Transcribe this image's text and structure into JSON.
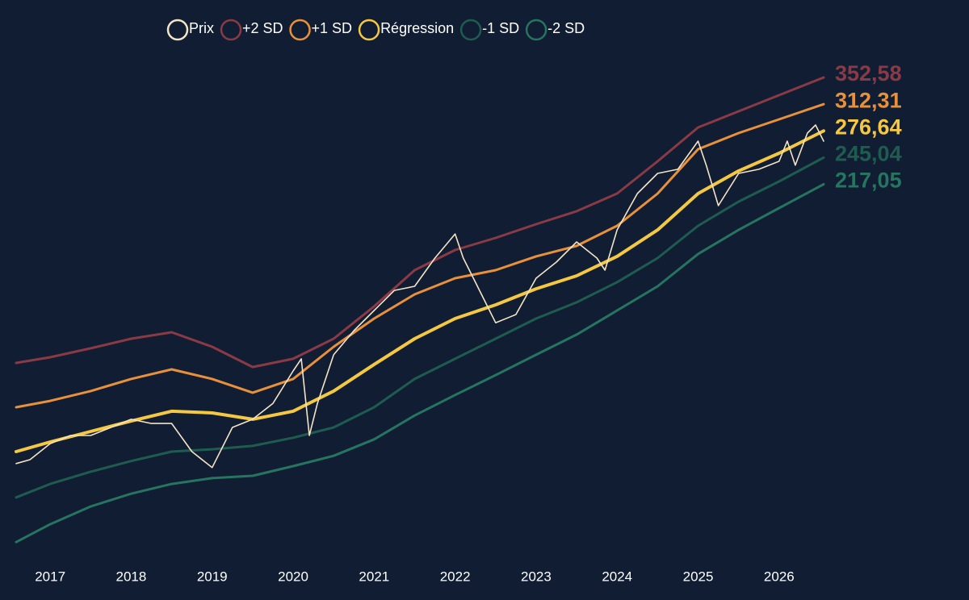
{
  "chart_data": {
    "type": "line",
    "log_y": true,
    "grid": false,
    "legend": "top",
    "xlim": [
      2016.58,
      2026.55
    ],
    "xticks": [
      2017,
      2018,
      2019,
      2020,
      2021,
      2022,
      2023,
      2024,
      2025,
      2026
    ],
    "ylim": [
      40,
      433
    ],
    "x": [
      2016.58,
      2017,
      2017.5,
      2018,
      2018.5,
      2019,
      2019.5,
      2020,
      2020.5,
      2021,
      2021.5,
      2022,
      2022.5,
      2023,
      2023.5,
      2024,
      2024.5,
      2025,
      2025.5,
      2026,
      2026.55
    ],
    "series": [
      {
        "name": "Prix",
        "color": "#f3e4c6",
        "width": 1.6,
        "x": [
          2016.58,
          2016.75,
          2017,
          2017.25,
          2017.5,
          2017.75,
          2018,
          2018.25,
          2018.5,
          2018.75,
          2019,
          2019.25,
          2019.5,
          2019.75,
          2020,
          2020.1,
          2020.2,
          2020.3,
          2020.5,
          2020.75,
          2021,
          2021.25,
          2021.5,
          2021.75,
          2022,
          2022.1,
          2022.25,
          2022.5,
          2022.75,
          2023,
          2023.25,
          2023.5,
          2023.75,
          2023.85,
          2024,
          2024.25,
          2024.5,
          2024.75,
          2025,
          2025.1,
          2025.25,
          2025.5,
          2025.75,
          2026,
          2026.1,
          2026.2,
          2026.35,
          2026.45,
          2026.55
        ],
        "values": [
          61.0,
          62.1,
          66.8,
          69.3,
          69.3,
          71.9,
          74.6,
          73.2,
          73.2,
          64.4,
          59.9,
          71.9,
          74.6,
          80.2,
          92.9,
          98.2,
          69.3,
          80.2,
          100.0,
          111.6,
          122.3,
          134.0,
          136.5,
          155.2,
          173.2,
          155.2,
          139.1,
          115.7,
          120.1,
          141.6,
          152.4,
          167.0,
          155.2,
          146.9,
          176.4,
          208.1,
          228.0,
          232.3,
          264.0,
          236.6,
          197.0,
          228.0,
          232.3,
          240.9,
          264.0,
          236.6,
          273.9,
          284.1,
          264.0
        ]
      },
      {
        "name": "+2 SD",
        "color": "#8a3a45",
        "width": 3,
        "values": [
          96.4,
          98.9,
          103.0,
          107.6,
          110.8,
          103.7,
          94.6,
          98.2,
          107.6,
          124.6,
          146.9,
          161.0,
          170.1,
          181.0,
          192.0,
          208.1,
          240.9,
          281.0,
          302.4,
          325.4,
          352.58
        ],
        "value_labels": [
          null,
          null,
          null,
          null,
          null,
          null,
          null,
          null,
          null,
          null,
          null,
          null,
          null,
          null,
          null,
          null,
          null,
          null,
          null,
          null,
          "352,58"
        ]
      },
      {
        "name": "+1 SD",
        "color": "#e8913a",
        "width": 3,
        "values": [
          78.8,
          81.1,
          84.8,
          89.6,
          93.6,
          89.6,
          84.2,
          89.6,
          103.7,
          117.9,
          131.6,
          141.6,
          146.9,
          156.4,
          164.0,
          179.7,
          208.1,
          254.5,
          273.9,
          291.5,
          312.31
        ],
        "value_labels": [
          null,
          null,
          null,
          null,
          null,
          null,
          null,
          null,
          null,
          null,
          null,
          null,
          null,
          null,
          null,
          null,
          null,
          null,
          null,
          null,
          "312,31"
        ]
      },
      {
        "name": "Régression",
        "color": "#f5c842",
        "width": 4,
        "values": [
          64.4,
          67.3,
          70.6,
          74.0,
          77.4,
          76.8,
          74.6,
          77.4,
          84.8,
          95.7,
          107.6,
          117.9,
          125.5,
          135.0,
          143.2,
          156.4,
          176.4,
          208.1,
          230.6,
          249.9,
          276.64
        ],
        "value_labels": [
          null,
          null,
          null,
          null,
          null,
          null,
          null,
          null,
          null,
          null,
          null,
          null,
          null,
          null,
          null,
          null,
          null,
          null,
          null,
          null,
          "276,64"
        ]
      },
      {
        "name": "-1 SD",
        "color": "#1f5c50",
        "width": 3,
        "values": [
          52.3,
          55.6,
          58.8,
          61.7,
          64.4,
          65.1,
          66.1,
          68.6,
          71.9,
          78.8,
          89.6,
          98.2,
          107.6,
          117.9,
          126.9,
          139.1,
          155.2,
          179.7,
          200.6,
          219.8,
          245.04
        ],
        "value_labels": [
          null,
          null,
          null,
          null,
          null,
          null,
          null,
          null,
          null,
          null,
          null,
          null,
          null,
          null,
          null,
          null,
          null,
          null,
          null,
          null,
          "245,04"
        ]
      },
      {
        "name": "-2 SD",
        "color": "#257560",
        "width": 3,
        "values": [
          42.7,
          46.3,
          50.2,
          53.2,
          55.6,
          57.1,
          57.7,
          60.3,
          63.2,
          68.1,
          75.9,
          83.3,
          91.2,
          100.0,
          109.6,
          122.3,
          136.5,
          158.1,
          176.4,
          194.8,
          217.05
        ],
        "value_labels": [
          null,
          null,
          null,
          null,
          null,
          null,
          null,
          null,
          null,
          null,
          null,
          null,
          null,
          null,
          null,
          null,
          null,
          null,
          null,
          null,
          "217,05"
        ]
      }
    ]
  }
}
